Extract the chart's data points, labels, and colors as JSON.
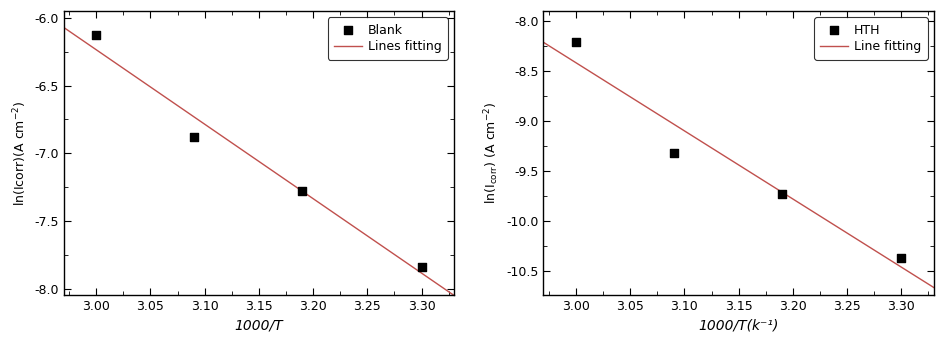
{
  "left": {
    "scatter_x": [
      3.0,
      3.09,
      3.19,
      3.3
    ],
    "scatter_y": [
      -6.13,
      -6.88,
      -7.28,
      -7.84
    ],
    "xlim": [
      2.97,
      3.33
    ],
    "ylim": [
      -8.05,
      -5.95
    ],
    "xticks": [
      3.0,
      3.05,
      3.1,
      3.15,
      3.2,
      3.25,
      3.3
    ],
    "yticks": [
      -8.0,
      -7.5,
      -7.0,
      -6.5,
      -6.0
    ],
    "xlabel": "1000/T",
    "ylabel_left": "ln(Icorr)(A cm",
    "ylabel_sup": "-2",
    "legend_labels": [
      "Blank",
      "Lines fitting"
    ],
    "line_color": "#c0504d",
    "scatter_color": "#000000",
    "bg_color": "#ffffff"
  },
  "right": {
    "scatter_x": [
      3.0,
      3.09,
      3.19,
      3.3
    ],
    "scatter_y": [
      -8.21,
      -9.32,
      -9.73,
      -10.37
    ],
    "xlim": [
      2.97,
      3.33
    ],
    "ylim": [
      -10.75,
      -7.9
    ],
    "xticks": [
      3.0,
      3.05,
      3.1,
      3.15,
      3.2,
      3.25,
      3.3
    ],
    "yticks": [
      -10.5,
      -10.0,
      -9.5,
      -9.0,
      -8.5,
      -8.0
    ],
    "xlabel": "1000/T(k⁻¹)",
    "legend_labels": [
      "HTH",
      "Line fitting"
    ],
    "line_color": "#c0504d",
    "scatter_color": "#000000",
    "bg_color": "#ffffff"
  },
  "figure_width": 9.45,
  "figure_height": 3.44,
  "dpi": 100
}
